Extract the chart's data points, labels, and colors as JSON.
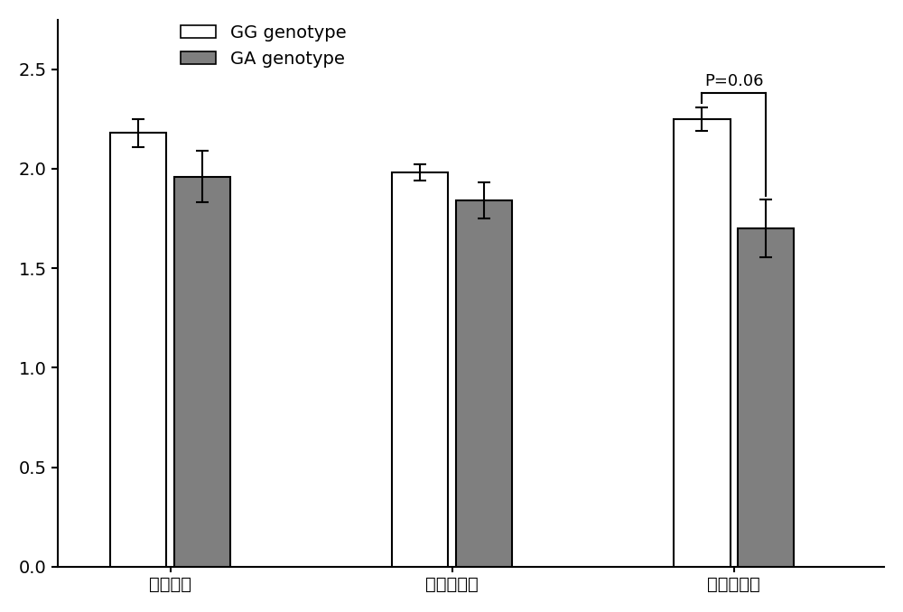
{
  "categories": [
    "总产羔数",
    "初产产羔数",
    "经产产羔数"
  ],
  "GG_values": [
    2.18,
    1.98,
    2.25
  ],
  "GA_values": [
    1.96,
    1.84,
    1.7
  ],
  "GG_errors": [
    0.07,
    0.04,
    0.06
  ],
  "GA_errors": [
    0.13,
    0.09,
    0.145
  ],
  "GG_color": "#ffffff",
  "GA_color": "#7f7f7f",
  "bar_edge_color": "#000000",
  "bar_width": 0.3,
  "group_centers": [
    1.0,
    2.5,
    4.0
  ],
  "ylim": [
    0.0,
    2.75
  ],
  "yticks": [
    0.0,
    0.5,
    1.0,
    1.5,
    2.0,
    2.5
  ],
  "legend_labels": [
    "GG genotype",
    "GA genotype"
  ],
  "significance_text": "P=0.06",
  "sig_group_index": 2,
  "tick_fontsize": 14,
  "legend_fontsize": 14,
  "annotation_fontsize": 13
}
